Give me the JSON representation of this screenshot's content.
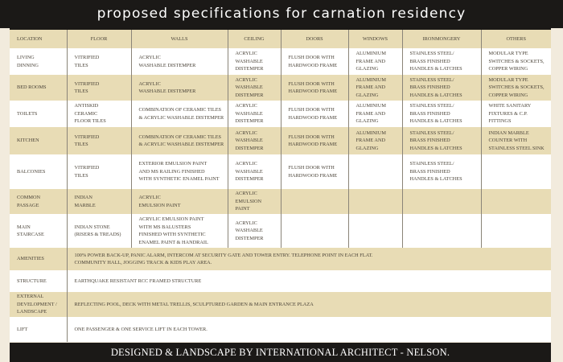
{
  "title": "proposed specifications for carnation residency",
  "columns": [
    "LOCATION",
    "FLOOR",
    "WALLS",
    "CEILING",
    "DOORS",
    "WINDOWS",
    "IRONMONGERY",
    "OTHERS"
  ],
  "rows": [
    {
      "location": "LIVING\nDINNING",
      "floor": "VITRIFIED\nTILES",
      "walls": "ACRYLIC\nWASHABLE DISTEMPER",
      "ceiling": "ACRYLIC\nWASHABLE\nDISTEMPER",
      "doors": "FLUSH DOOR WITH\nHARDWOOD FRAME",
      "windows": "ALUMINIUM\nFRAME AND\nGLAZING",
      "ironmongery": "STAINLESS STEEL/\nBRASS FINISHED\nHANDLES & LATCHES",
      "others": "MODULAR TYPE\nSWITCHES & SOCKETS,\nCOPPER WIRING"
    },
    {
      "location": "BED ROOMS",
      "floor": "VITRIFIED\nTILES",
      "walls": "ACRYLIC\nWASHABLE DISTEMPER",
      "ceiling": "ACRYLIC\nWASHABLE\nDISTEMPER",
      "doors": "FLUSH DOOR WITH\nHARDWOOD FRAME",
      "windows": "ALUMINIUM\nFRAME AND\nGLAZING",
      "ironmongery": "STAINLESS STEEL/\nBRASS FINISHED\nHANDLES & LATCHES",
      "others": "MODULAR TYPE\nSWITCHES & SOCKETS,\nCOPPER WIRING"
    },
    {
      "location": "TOILETS",
      "floor": "ANTISKID\nCERAMIC\nFLOOR TILES",
      "walls": "COMBINATION OF CERAMIC TILES\n& ACRYLIC WASHABLE DISTEMPER",
      "ceiling": "ACRYLIC\nWASHABLE\nDISTEMPER",
      "doors": "FLUSH DOOR WITH\nHARDWOOD FRAME",
      "windows": "ALUMINIUM\nFRAME AND\nGLAZING",
      "ironmongery": "STAINLESS STEEL/\nBRASS FINISHED\nHANDLES & LATCHES",
      "others": "WHITE SANITARY\nFIXTURES & C.P.\nFITTINGS"
    },
    {
      "location": "KITCHEN",
      "floor": "VITRIFIED\nTILES",
      "walls": "COMBINATION OF CERAMIC TILES\n& ACRYLIC WASHABLE DISTEMPER",
      "ceiling": "ACRYLIC\nWASHABLE\nDISTEMPER",
      "doors": "FLUSH DOOR WITH\nHARDWOOD FRAME",
      "windows": "ALUMINIUM\nFRAME AND\nGLAZING",
      "ironmongery": "STAINLESS STEEL/\nBRASS FINISHED\nHANDLES & LATCHES",
      "others": "INDIAN MARBLE\nCOUNTER WITH\nSTAINLESS STEEL SINK"
    },
    {
      "location": "BALCONIES",
      "floor": "VITRIFIED\nTILES",
      "walls": "EXTERIOR EMULSION PAINT\nAND MS RAILING FINISHED\nWITH SYNTHETIC ENAMEL PAINT",
      "ceiling": "ACRYLIC\nWASHABLE\nDISTEMPER",
      "doors": "FLUSH DOOR WITH\nHARDWOOD FRAME",
      "windows": "",
      "ironmongery": "STAINLESS STEEL/\nBRASS FINISHED\nHANDLES & LATCHES",
      "others": ""
    },
    {
      "location": "COMMON\nPASSAGE",
      "floor": "INDIAN\nMARBLE",
      "walls": "ACRYLIC\nEMULSION PAINT",
      "ceiling": "ACRYLIC\nEMULSION\nPAINT",
      "doors": "",
      "windows": "",
      "ironmongery": "",
      "others": ""
    },
    {
      "location": "MAIN\nSTAIRCASE",
      "floor": "INDIAN STONE\n(RISERS & TREADS)",
      "walls": "ACRYLIC EMULSION PAINT\nWITH MS BALUSTERS\nFINISHED WITH SYNTHETIC\nENAMEL PAINT & HANDRAIL",
      "ceiling": "ACRYLIC\nWASHABLE\nDISTEMPER",
      "doors": "",
      "windows": "",
      "ironmongery": "",
      "others": ""
    }
  ],
  "general": [
    {
      "label": "AMENITIES",
      "text": "100% POWER BACK-UP, PANIC ALARM, INTERCOM AT SECURITY GATE AND TOWER ENTRY. TELEPHONE POINT IN EACH FLAT.\nCOMMUNITY HALL, JOGGING TRACK & KIDS PLAY AREA."
    },
    {
      "label": "STRUCTURE",
      "text": "EARTHQUAKE RESISTANT RCC FRAMED STRUCTURE"
    },
    {
      "label": "EXTERNAL\nDEVELOPMENT /\nLANDSCAPE",
      "text": "REFLECTING POOL, DECK WITH METAL TRELLIS, SCULPTURED GARDEN & MAIN ENTRANCE PLAZA"
    },
    {
      "label": "LIFT",
      "text": "ONE PASSENGER & ONE SERVICE LIFT IN EACH TOWER."
    }
  ],
  "footer": "DESIGNED & LANDSCAPE BY INTERNATIONAL ARCHITECT - NELSON.",
  "colors": {
    "band": "#e8dcb5",
    "dark": "#1b1917",
    "background": "#f2ebdd"
  }
}
